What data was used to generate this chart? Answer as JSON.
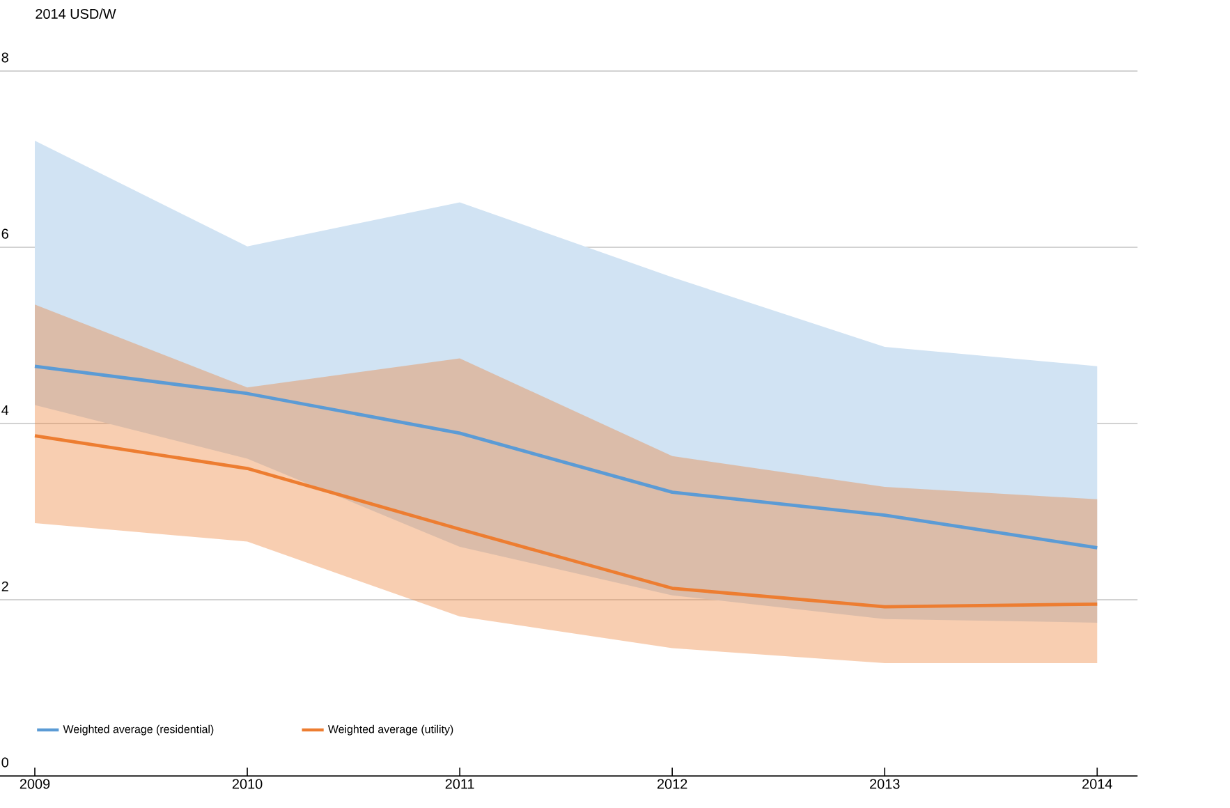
{
  "chart_data": {
    "type": "line",
    "ylabel": "2014 USD/W",
    "categories": [
      "2009",
      "2010",
      "2011",
      "2012",
      "2013",
      "2014"
    ],
    "series": [
      {
        "name": "Weighted average (residential)",
        "color": "#5b9bd5",
        "values": [
          4.65,
          4.34,
          3.89,
          3.22,
          2.96,
          2.59
        ],
        "lower": [
          4.21,
          3.6,
          2.6,
          2.05,
          1.78,
          1.74
        ],
        "upper": [
          7.21,
          6.01,
          6.51,
          5.66,
          4.87,
          4.65
        ]
      },
      {
        "name": "Weighted average (utility)",
        "color": "#ed7d31",
        "values": [
          3.86,
          3.49,
          2.8,
          2.13,
          1.92,
          1.95
        ],
        "lower": [
          2.87,
          2.66,
          1.81,
          1.45,
          1.28,
          1.28
        ],
        "upper": [
          5.35,
          4.41,
          4.74,
          3.63,
          3.28,
          3.14
        ]
      }
    ],
    "ylim": [
      0,
      8
    ],
    "yticks": [
      0,
      2,
      4,
      6,
      8
    ],
    "grid": "y",
    "legend": "bottom left",
    "line_style": "solid",
    "marker": "none"
  }
}
